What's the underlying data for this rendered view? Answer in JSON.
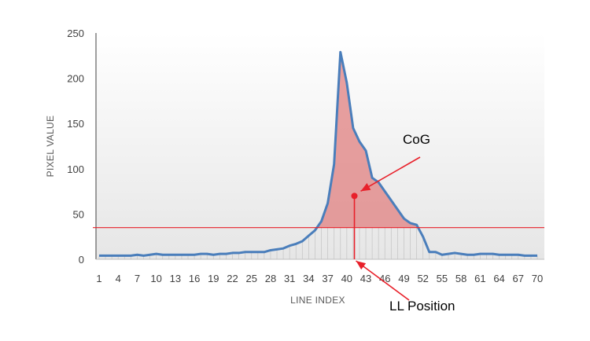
{
  "chart_data": {
    "type": "area",
    "xlabel": "LINE INDEX",
    "ylabel": "PIXEL VALUE",
    "ylim": [
      0,
      250
    ],
    "yticks": [
      0,
      50,
      100,
      150,
      200,
      250
    ],
    "x_tick_labels": [
      1,
      4,
      7,
      10,
      13,
      16,
      19,
      22,
      25,
      28,
      31,
      34,
      37,
      40,
      43,
      46,
      49,
      52,
      55,
      58,
      61,
      64,
      67,
      70
    ],
    "xlim": [
      1,
      70
    ],
    "grid": false,
    "series": [
      {
        "color": "#4a7ebb",
        "x": [
          1,
          2,
          3,
          4,
          5,
          6,
          7,
          8,
          9,
          10,
          11,
          12,
          13,
          14,
          15,
          16,
          17,
          18,
          19,
          20,
          21,
          22,
          23,
          24,
          25,
          26,
          27,
          28,
          29,
          30,
          31,
          32,
          33,
          34,
          35,
          36,
          37,
          38,
          39,
          40,
          41,
          42,
          43,
          44,
          45,
          46,
          47,
          48,
          49,
          50,
          51,
          52,
          53,
          54,
          55,
          56,
          57,
          58,
          59,
          60,
          61,
          62,
          63,
          64,
          65,
          66,
          67,
          68,
          69,
          70
        ],
        "y": [
          4,
          4,
          4,
          4,
          4,
          4,
          5,
          4,
          5,
          6,
          5,
          5,
          5,
          5,
          5,
          5,
          6,
          6,
          5,
          6,
          6,
          7,
          7,
          8,
          8,
          8,
          8,
          10,
          11,
          12,
          15,
          17,
          20,
          26,
          32,
          42,
          62,
          105,
          229,
          195,
          145,
          130,
          120,
          90,
          85,
          75,
          65,
          55,
          45,
          40,
          38,
          25,
          8,
          8,
          5,
          6,
          7,
          6,
          5,
          5,
          6,
          6,
          6,
          5,
          5,
          5,
          5,
          4,
          4,
          4
        ]
      }
    ],
    "threshold": {
      "value": 35,
      "color": "#e8202a"
    },
    "fill_color": "#e08080",
    "annotations": [
      {
        "label": "CoG",
        "point": {
          "x": 41.2,
          "y": 70
        }
      },
      {
        "label": "LL Position",
        "point": {
          "x": 41.2,
          "y": 0
        }
      }
    ]
  }
}
